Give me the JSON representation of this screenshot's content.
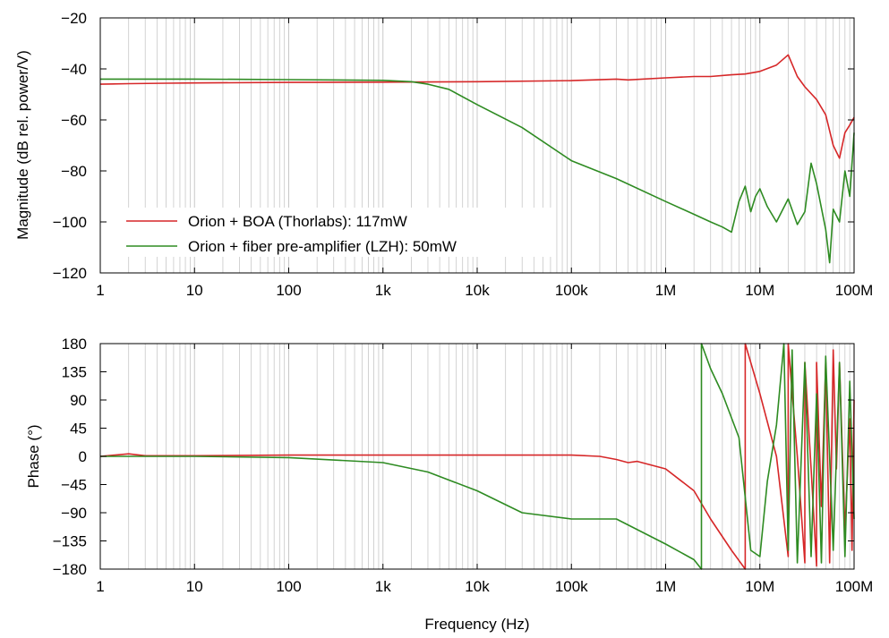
{
  "chart_data": [
    {
      "type": "line",
      "panel": "magnitude",
      "title": "",
      "xlabel": "",
      "ylabel": "Magnitude (dB rel. power/V)",
      "xscale": "log",
      "xlim": [
        1,
        100000000
      ],
      "ylim": [
        -120,
        -20
      ],
      "xticks": [
        1,
        10,
        100,
        1000,
        10000,
        100000,
        1000000,
        10000000,
        100000000
      ],
      "xtick_labels": [
        "1",
        "10",
        "100",
        "1k",
        "10k",
        "100k",
        "1M",
        "10M",
        "100M"
      ],
      "yticks": [
        -20,
        -40,
        -60,
        -80,
        -100,
        -120
      ],
      "ytick_labels": [
        "−20",
        "−40",
        "−60",
        "−80",
        "−100",
        "−120"
      ],
      "grid": "vertical log gridlines",
      "legend_position": "bottom-left",
      "series": [
        {
          "name": "Orion + BOA (Thorlabs): 117mW",
          "color": "#d62728",
          "x": [
            1,
            2,
            5,
            10,
            100,
            1000,
            10000,
            100000,
            300000,
            400000,
            1000000,
            2000000,
            3000000,
            5000000,
            7000000,
            10000000,
            15000000,
            20000000,
            25000000,
            30000000,
            40000000,
            50000000,
            60000000,
            70000000,
            80000000,
            90000000,
            100000000
          ],
          "y": [
            -46,
            -45.8,
            -45.6,
            -45.5,
            -45.3,
            -45.2,
            -45,
            -44.6,
            -44,
            -44.3,
            -43.5,
            -43,
            -43,
            -42.3,
            -42,
            -41,
            -38.5,
            -34.5,
            -43,
            -47,
            -52,
            -58,
            -70,
            -75,
            -65,
            -62,
            -59
          ]
        },
        {
          "name": "Orion + fiber pre-amplifier (LZH): 50mW",
          "color": "#2e8b22",
          "x": [
            1,
            10,
            100,
            1000,
            2000,
            3000,
            5000,
            10000,
            30000,
            100000,
            300000,
            1000000,
            2000000,
            3000000,
            4000000,
            5000000,
            6000000,
            7000000,
            8000000,
            9000000,
            10000000,
            12000000,
            15000000,
            20000000,
            25000000,
            30000000,
            35000000,
            40000000,
            50000000,
            55000000,
            60000000,
            70000000,
            80000000,
            90000000,
            100000000
          ],
          "y": [
            -44,
            -44,
            -44.2,
            -44.5,
            -45,
            -46,
            -48,
            -54,
            -63,
            -76,
            -83,
            -92,
            -97,
            -100,
            -102,
            -104,
            -92,
            -86,
            -96,
            -90,
            -87,
            -94,
            -100,
            -91,
            -101,
            -96,
            -77,
            -85,
            -103,
            -116,
            -95,
            -100,
            -80,
            -90,
            -65
          ]
        }
      ]
    },
    {
      "type": "line",
      "panel": "phase",
      "title": "",
      "xlabel": "Frequency (Hz)",
      "ylabel": "Phase (°)",
      "xscale": "log",
      "xlim": [
        1,
        100000000
      ],
      "ylim": [
        -180,
        180
      ],
      "xticks": [
        1,
        10,
        100,
        1000,
        10000,
        100000,
        1000000,
        10000000,
        100000000
      ],
      "xtick_labels": [
        "1",
        "10",
        "100",
        "1k",
        "10k",
        "100k",
        "1M",
        "10M",
        "100M"
      ],
      "yticks": [
        180,
        135,
        90,
        45,
        0,
        -45,
        -90,
        -135,
        -180
      ],
      "ytick_labels": [
        "180",
        "135",
        "90",
        "45",
        "0",
        "−45",
        "−90",
        "−135",
        "−180"
      ],
      "grid": "vertical log gridlines",
      "series": [
        {
          "name": "Orion + BOA (Thorlabs): 117mW",
          "color": "#d62728",
          "x": [
            1,
            2,
            3,
            10,
            100,
            1000,
            10000,
            100000,
            200000,
            300000,
            400000,
            500000,
            1000000,
            2000000,
            3000000,
            5000000,
            7000000,
            7000001,
            10000000,
            15000000,
            20000000,
            20000001,
            25000000,
            30000000,
            30000001,
            35000000,
            40000000,
            40000001,
            45000000,
            50000000,
            55000000,
            60000000,
            65000000,
            70000000,
            80000000,
            90000000,
            95000000,
            100000000
          ],
          "y": [
            0,
            4,
            1,
            1,
            2,
            2,
            2,
            2,
            0,
            -5,
            -10,
            -8,
            -20,
            -55,
            -100,
            -150,
            -180,
            180,
            100,
            0,
            -160,
            180,
            0,
            -170,
            150,
            -20,
            -175,
            150,
            -80,
            150,
            -170,
            170,
            -20,
            150,
            -120,
            60,
            -150,
            90
          ]
        },
        {
          "name": "Orion + fiber pre-amplifier (LZH): 50mW",
          "color": "#2e8b22",
          "x": [
            1,
            10,
            100,
            1000,
            3000,
            10000,
            30000,
            100000,
            300000,
            1000000,
            2000000,
            2400000,
            2400001,
            3000000,
            4000000,
            6000000,
            8000000,
            10000000,
            12000000,
            15000000,
            18000000,
            20000000,
            22000000,
            25000000,
            30000000,
            35000000,
            40000000,
            45000000,
            50000000,
            60000000,
            70000000,
            80000000,
            90000000,
            100000000
          ],
          "y": [
            0,
            0,
            -2,
            -10,
            -25,
            -55,
            -90,
            -100,
            -100,
            -140,
            -165,
            -180,
            180,
            140,
            100,
            30,
            -150,
            -160,
            -40,
            50,
            180,
            -150,
            170,
            -170,
            150,
            -160,
            100,
            -170,
            160,
            -150,
            150,
            -160,
            120,
            -100
          ]
        }
      ]
    }
  ]
}
